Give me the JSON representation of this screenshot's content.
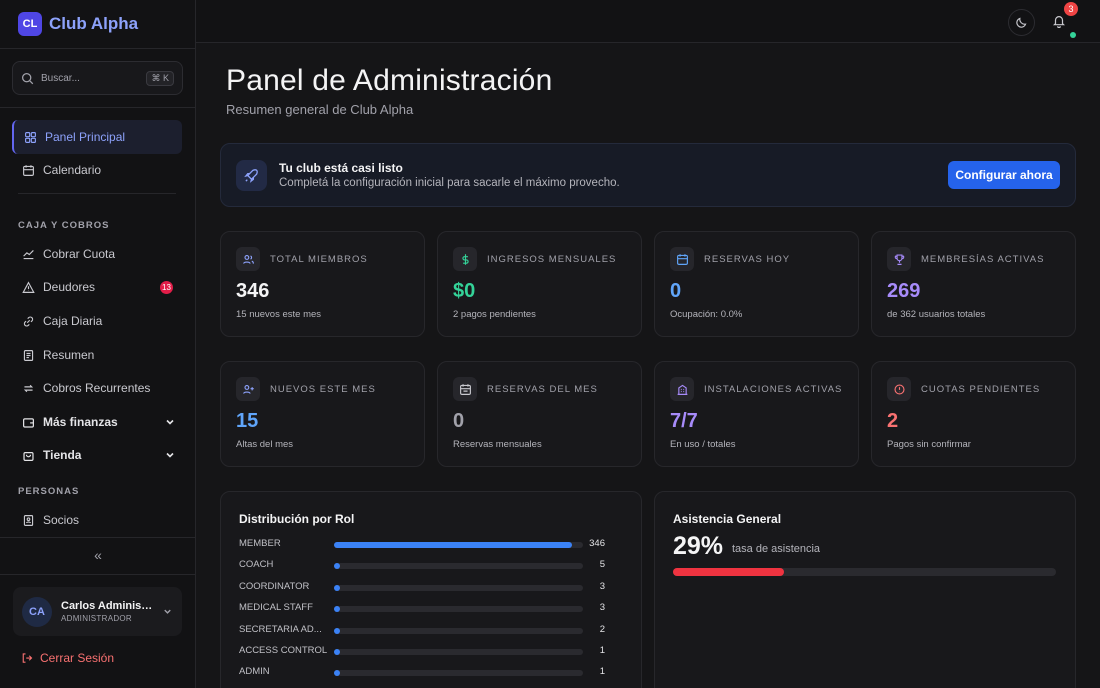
{
  "brand": {
    "initials": "CL",
    "name": "Club Alpha"
  },
  "search": {
    "placeholder": "Buscar...",
    "shortcut": "⌘ K"
  },
  "nav": {
    "main": [
      {
        "label": "Panel Principal",
        "icon": "layout-grid-icon",
        "active": true
      },
      {
        "label": "Calendario",
        "icon": "calendar-icon"
      }
    ],
    "caja_section": "CAJA Y COBROS",
    "caja": [
      {
        "label": "Cobrar Cuota",
        "icon": "coins-icon"
      },
      {
        "label": "Deudores",
        "icon": "warning-icon",
        "badge": "13"
      },
      {
        "label": "Caja Diaria",
        "icon": "link-icon"
      },
      {
        "label": "Resumen",
        "icon": "receipt-icon"
      },
      {
        "label": "Cobros Recurrentes",
        "icon": "repeat-icon"
      },
      {
        "label": "Más finanzas",
        "icon": "wallet-icon"
      },
      {
        "label": "Tienda",
        "icon": "shopping-bag-icon"
      }
    ],
    "personas_section": "PERSONAS",
    "personas": [
      {
        "label": "Socios",
        "icon": "contact-icon"
      }
    ],
    "collapse": "«"
  },
  "user": {
    "initials": "CA",
    "name": "Carlos Administrador",
    "role": "ADMINISTRADOR"
  },
  "logout": "Cerrar Sesión",
  "topbar": {
    "notifications_count": "3"
  },
  "page": {
    "title": "Panel de Administración",
    "subtitle": "Resumen general de Club Alpha"
  },
  "banner": {
    "title": "Tu club está casi listo",
    "text": "Completá la configuración inicial para sacarle el máximo provecho.",
    "button": "Configurar ahora"
  },
  "stats": [
    {
      "label": "TOTAL MIEMBROS",
      "value": "346",
      "sub": "15 nuevos este mes",
      "color": "#f4f4f5",
      "icon": "users-icon"
    },
    {
      "label": "INGRESOS MENSUALES",
      "value": "$0",
      "sub": "2 pagos pendientes",
      "color": "#34d399",
      "icon": "dollar-icon"
    },
    {
      "label": "RESERVAS HOY",
      "value": "0",
      "sub": "Ocupación: 0.0%",
      "color": "#60a5fa",
      "icon": "calendar-icon"
    },
    {
      "label": "MEMBRESÍAS ACTIVAS",
      "value": "269",
      "sub": "de 362 usuarios totales",
      "color": "#a78bfa",
      "icon": "trophy-icon"
    },
    {
      "label": "NUEVOS ESTE MES",
      "value": "15",
      "sub": "Altas del mes",
      "color": "#60a5fa",
      "icon": "user-plus-icon"
    },
    {
      "label": "RESERVAS DEL MES",
      "value": "0",
      "sub": "Reservas mensuales",
      "color": "#a1a1aa",
      "icon": "calendar-days-icon"
    },
    {
      "label": "INSTALACIONES ACTIVAS",
      "value": "7/7",
      "sub": "En uso / totales",
      "color": "#a78bfa",
      "icon": "building-icon"
    },
    {
      "label": "CUOTAS PENDIENTES",
      "value": "2",
      "sub": "Pagos sin confirmar",
      "color": "#f87171",
      "icon": "alert-circle-icon"
    }
  ],
  "roles": {
    "title": "Distribución por Rol",
    "items": [
      {
        "name": "MEMBER",
        "count": 346
      },
      {
        "name": "COACH",
        "count": 5
      },
      {
        "name": "COORDINATOR",
        "count": 3
      },
      {
        "name": "MEDICAL STAFF",
        "count": 3
      },
      {
        "name": "SECRETARIA AD...",
        "count": 2
      },
      {
        "name": "ACCESS CONTROL",
        "count": 1
      },
      {
        "name": "ADMIN",
        "count": 1
      }
    ]
  },
  "attendance": {
    "title": "Asistencia General",
    "value": "29%",
    "label": "tasa de asistencia",
    "percent": 29
  }
}
